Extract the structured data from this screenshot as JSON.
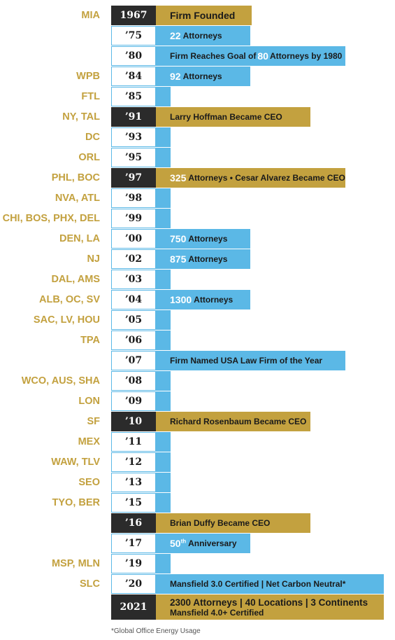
{
  "rows": [
    {
      "loc": "MIA",
      "year": "1967",
      "event": "Firm Founded"
    },
    {
      "loc": "",
      "year": "’75",
      "num": "22",
      "event": "Attorneys"
    },
    {
      "loc": "",
      "year": "’80",
      "pre": "Firm Reaches Goal of",
      "num": "80",
      "event": "Attorneys by 1980"
    },
    {
      "loc": "WPB",
      "year": "’84",
      "num": "92",
      "event": "Attorneys"
    },
    {
      "loc": "FTL",
      "year": "’85"
    },
    {
      "loc": "NY, TAL",
      "year": "’91",
      "event": "Larry Hoffman Became CEO"
    },
    {
      "loc": "DC",
      "year": "’93"
    },
    {
      "loc": "ORL",
      "year": "’95"
    },
    {
      "loc": "PHL, BOC",
      "year": "’97",
      "num": "325",
      "event": "Attorneys • Cesar Alvarez Became CEO"
    },
    {
      "loc": "NVA, ATL",
      "year": "’98"
    },
    {
      "loc": "CHI, BOS, PHX, DEL",
      "year": "’99"
    },
    {
      "loc": "DEN, LA",
      "year": "’00",
      "num": "750",
      "event": "Attorneys"
    },
    {
      "loc": "NJ",
      "year": "’02",
      "num": "875",
      "event": "Attorneys"
    },
    {
      "loc": "DAL, AMS",
      "year": "’03"
    },
    {
      "loc": "ALB, OC, SV",
      "year": "’04",
      "num": "1300",
      "event": "Attorneys"
    },
    {
      "loc": "SAC, LV, HOU",
      "year": "’05"
    },
    {
      "loc": "TPA",
      "year": "’06"
    },
    {
      "loc": "",
      "year": "’07",
      "event": "Firm Named USA Law Firm of the Year"
    },
    {
      "loc": "WCO, AUS, SHA",
      "year": "’08"
    },
    {
      "loc": "LON",
      "year": "’09"
    },
    {
      "loc": "SF",
      "year": "’10",
      "event": "Richard Rosenbaum Became CEO"
    },
    {
      "loc": "MEX",
      "year": "’11"
    },
    {
      "loc": "WAW, TLV",
      "year": "’12"
    },
    {
      "loc": "SEO",
      "year": "’13"
    },
    {
      "loc": "TYO, BER",
      "year": "’15"
    },
    {
      "loc": "",
      "year": "’16",
      "event": "Brian Duffy Became CEO"
    },
    {
      "loc": "",
      "year": "’17",
      "num": "50",
      "sup": "th",
      "event": "Anniversary"
    },
    {
      "loc": "MSP, MLN",
      "year": "’19"
    },
    {
      "loc": "SLC",
      "year": "’20",
      "event": "Mansfield 3.0 Certified | Net Carbon Neutral*"
    },
    {
      "loc": "",
      "year": "2021",
      "event": "2300 Attorneys | 40 Locations | 3 Continents",
      "event2": "Mansfield 4.0+ Certified"
    }
  ],
  "footnote": "*Global Office Energy Usage",
  "colors": {
    "gold": "#c3a13f",
    "blue": "#5bb8e6",
    "dark": "#2b2b2b"
  }
}
